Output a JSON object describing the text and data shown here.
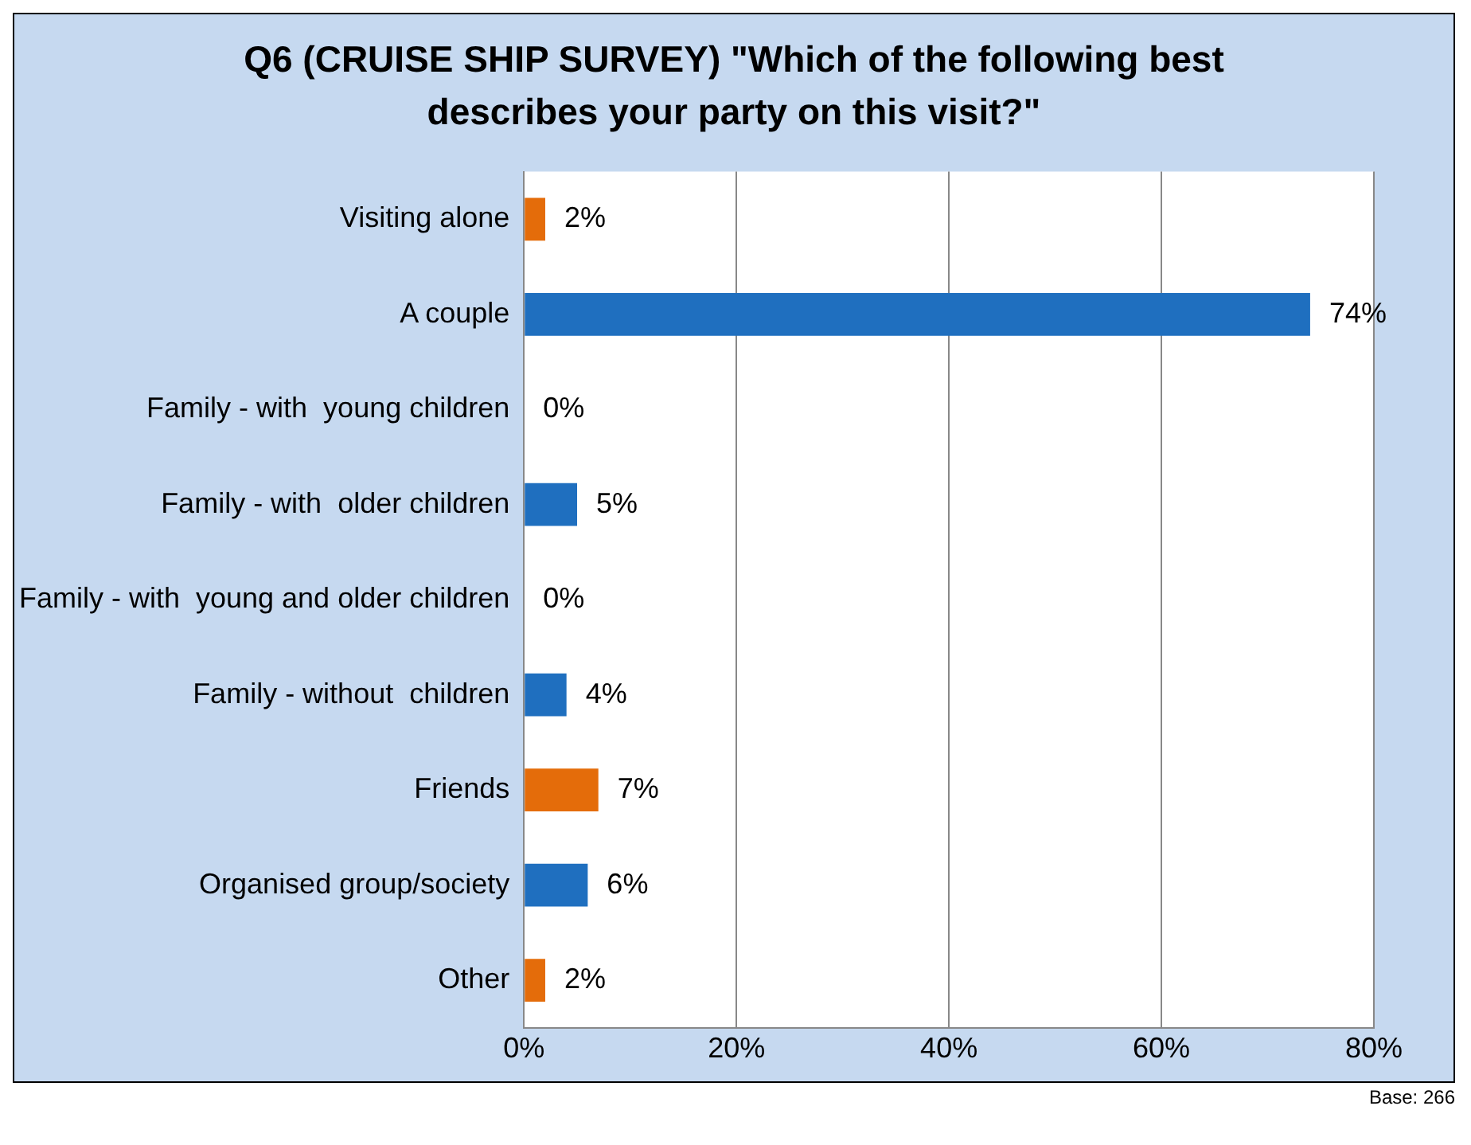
{
  "chart_data": {
    "type": "bar",
    "orientation": "horizontal",
    "title": "Q6 (CRUISE SHIP SURVEY) \"Which of the following best describes your party on this visit?\"",
    "categories": [
      "Visiting alone",
      "A couple",
      "Family - with  young children",
      "Family - with  older children",
      "Family - with  young and older children",
      "Family - without  children",
      "Friends",
      "Organised group/society",
      "Other"
    ],
    "values": [
      2,
      74,
      0,
      5,
      0,
      4,
      7,
      6,
      2
    ],
    "colors": [
      "#e46c0a",
      "#1f6fbf",
      "#1f6fbf",
      "#1f6fbf",
      "#1f6fbf",
      "#1f6fbf",
      "#e46c0a",
      "#1f6fbf",
      "#e46c0a"
    ],
    "value_labels": [
      "2%",
      "74%",
      "0%",
      "5%",
      "0%",
      "4%",
      "7%",
      "6%",
      "2%"
    ],
    "xlim": [
      0,
      80
    ],
    "xticks": [
      {
        "value": 0,
        "label": "0%"
      },
      {
        "value": 20,
        "label": "20%"
      },
      {
        "value": 40,
        "label": "40%"
      },
      {
        "value": 60,
        "label": "60%"
      },
      {
        "value": 80,
        "label": "80%"
      }
    ],
    "grid": "x",
    "annotations": [
      "Base: 266"
    ]
  }
}
